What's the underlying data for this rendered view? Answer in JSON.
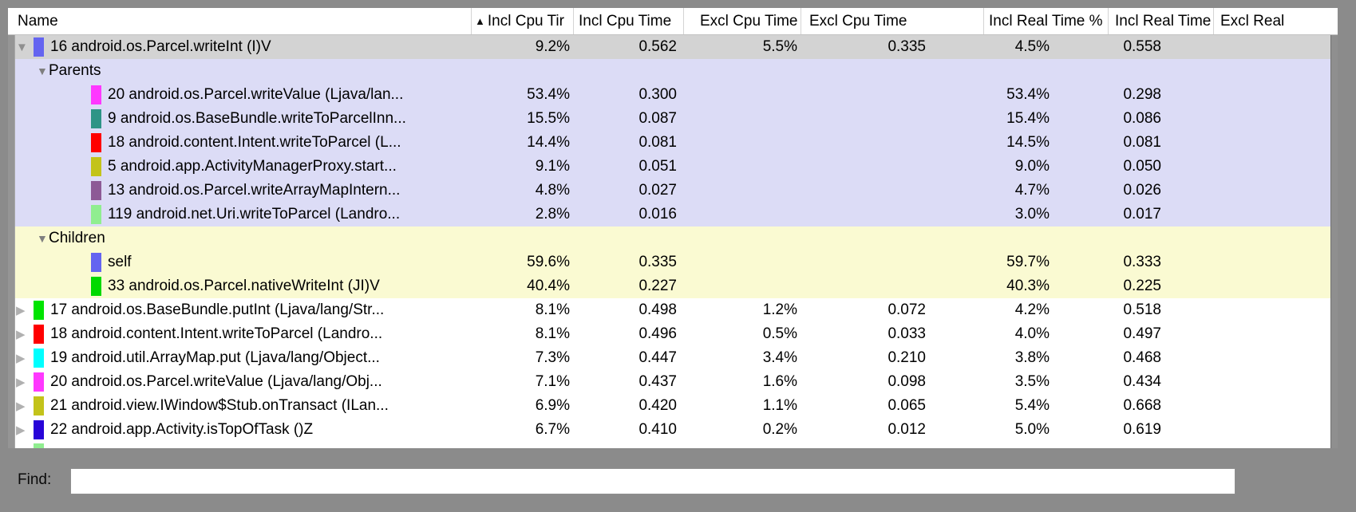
{
  "colors": {
    "window_bg": "#8b8b8b",
    "row_selected": "#d3d3d3",
    "row_parents": "#dcdcf6",
    "row_children": "#fafad2",
    "row_white": "#ffffff"
  },
  "icons": {
    "expanded": "▼",
    "collapsed": "▶",
    "sort_asc": "▲"
  },
  "table": {
    "columns": [
      {
        "key": "name",
        "label": "Name",
        "sorted": false
      },
      {
        "key": "incl_cpu_time_pct",
        "label": "Incl Cpu Tir",
        "sorted": true
      },
      {
        "key": "incl_cpu_time",
        "label": "Incl Cpu Time",
        "sorted": false
      },
      {
        "key": "excl_cpu_time_pct",
        "label": "Excl Cpu Time %",
        "sorted": false
      },
      {
        "key": "excl_cpu_time",
        "label": "Excl Cpu Time",
        "sorted": false
      },
      {
        "key": "incl_real_time_pct",
        "label": "Incl Real Time %",
        "sorted": false
      },
      {
        "key": "incl_real_time",
        "label": "Incl Real Time",
        "sorted": false
      },
      {
        "key": "excl_real",
        "label": "Excl Real",
        "sorted": false
      }
    ],
    "rows": [
      {
        "type": "function",
        "expand": "expanded",
        "swatch": "#6464f0",
        "bg": "selected",
        "name": "16 android.os.Parcel.writeInt (I)V",
        "values": [
          "9.2%",
          "0.562",
          "5.5%",
          "0.335",
          "4.5%",
          "0.558"
        ]
      },
      {
        "type": "section",
        "expand": "expanded",
        "bg": "parents",
        "name": "Parents",
        "values": [
          "",
          "",
          "",
          "",
          "",
          ""
        ]
      },
      {
        "type": "sub",
        "swatch": "#ff38ff",
        "bg": "parents",
        "name": "20 android.os.Parcel.writeValue (Ljava/lan...",
        "values": [
          "53.4%",
          "0.300",
          "",
          "",
          "53.4%",
          "0.298"
        ]
      },
      {
        "type": "sub",
        "swatch": "#2e9486",
        "bg": "parents",
        "name": "9 android.os.BaseBundle.writeToParcelInn...",
        "values": [
          "15.5%",
          "0.087",
          "",
          "",
          "15.4%",
          "0.086"
        ]
      },
      {
        "type": "sub",
        "swatch": "#ff0000",
        "bg": "parents",
        "name": "18 android.content.Intent.writeToParcel (L...",
        "values": [
          "14.4%",
          "0.081",
          "",
          "",
          "14.5%",
          "0.081"
        ]
      },
      {
        "type": "sub",
        "swatch": "#c3c31a",
        "bg": "parents",
        "name": "5 android.app.ActivityManagerProxy.start...",
        "values": [
          "9.1%",
          "0.051",
          "",
          "",
          "9.0%",
          "0.050"
        ]
      },
      {
        "type": "sub",
        "swatch": "#8d5a96",
        "bg": "parents",
        "name": "13 android.os.Parcel.writeArrayMapIntern...",
        "values": [
          "4.8%",
          "0.027",
          "",
          "",
          "4.7%",
          "0.026"
        ]
      },
      {
        "type": "sub",
        "swatch": "#90ee90",
        "bg": "parents",
        "name": "119 android.net.Uri.writeToParcel (Landro...",
        "values": [
          "2.8%",
          "0.016",
          "",
          "",
          "3.0%",
          "0.017"
        ]
      },
      {
        "type": "section",
        "expand": "expanded",
        "bg": "children",
        "name": "Children",
        "values": [
          "",
          "",
          "",
          "",
          "",
          ""
        ]
      },
      {
        "type": "sub",
        "swatch": "#6464f0",
        "bg": "children",
        "name": "self",
        "values": [
          "59.6%",
          "0.335",
          "",
          "",
          "59.7%",
          "0.333"
        ]
      },
      {
        "type": "sub",
        "swatch": "#00d900",
        "bg": "children",
        "name": "33 android.os.Parcel.nativeWriteInt (JI)V",
        "values": [
          "40.4%",
          "0.227",
          "",
          "",
          "40.3%",
          "0.225"
        ]
      },
      {
        "type": "function",
        "expand": "collapsed",
        "swatch": "#00e400",
        "bg": "white",
        "name": "17 android.os.BaseBundle.putInt (Ljava/lang/Str...",
        "values": [
          "8.1%",
          "0.498",
          "1.2%",
          "0.072",
          "4.2%",
          "0.518"
        ]
      },
      {
        "type": "function",
        "expand": "collapsed",
        "swatch": "#ff0000",
        "bg": "white",
        "name": "18 android.content.Intent.writeToParcel (Landro...",
        "values": [
          "8.1%",
          "0.496",
          "0.5%",
          "0.033",
          "4.0%",
          "0.497"
        ]
      },
      {
        "type": "function",
        "expand": "collapsed",
        "swatch": "#00ffff",
        "bg": "white",
        "name": "19 android.util.ArrayMap.put (Ljava/lang/Object...",
        "values": [
          "7.3%",
          "0.447",
          "3.4%",
          "0.210",
          "3.8%",
          "0.468"
        ]
      },
      {
        "type": "function",
        "expand": "collapsed",
        "swatch": "#ff38ff",
        "bg": "white",
        "name": "20 android.os.Parcel.writeValue (Ljava/lang/Obj...",
        "values": [
          "7.1%",
          "0.437",
          "1.6%",
          "0.098",
          "3.5%",
          "0.434"
        ]
      },
      {
        "type": "function",
        "expand": "collapsed",
        "swatch": "#c3c31a",
        "bg": "white",
        "name": "21 android.view.IWindow$Stub.onTransact (ILan...",
        "values": [
          "6.9%",
          "0.420",
          "1.1%",
          "0.065",
          "5.4%",
          "0.668"
        ]
      },
      {
        "type": "function",
        "expand": "collapsed",
        "swatch": "#2804d8",
        "bg": "white",
        "name": "22 android.app.Activity.isTopOfTask ()Z",
        "values": [
          "6.7%",
          "0.410",
          "0.2%",
          "0.012",
          "5.0%",
          "0.619"
        ]
      },
      {
        "type": "partial",
        "swatch": "#90ee90",
        "bg": "white",
        "name": "",
        "values": [
          "",
          "",
          "",
          "",
          "",
          ""
        ]
      }
    ]
  },
  "find": {
    "label": "Find:",
    "value": "",
    "placeholder": ""
  }
}
